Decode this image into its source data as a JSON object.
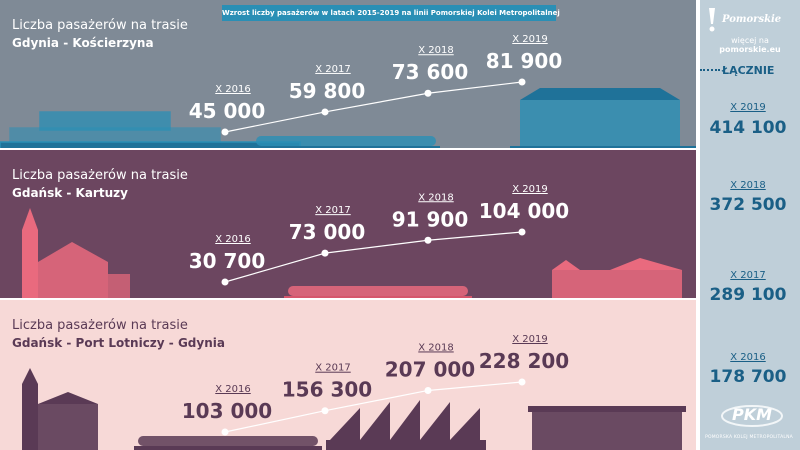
{
  "title": "Wzrost liczby pasażerów w latach 2015-2019 na linii Pomorskiej Kolei Metropolitalnej",
  "brand": {
    "logo_text": "Pomorskie",
    "link_prefix": "więcej na ",
    "link_domain": "pomorskie.eu",
    "pkm_logo": "PKM",
    "pkm_subtitle": "POMORSKA KOLEJ METROPOLITALNA"
  },
  "colors": {
    "band_1": "#7f8a96",
    "band_2": "#6c4660",
    "band_3": "#f7d9d7",
    "sidebar": "#bfcfd9",
    "accent_blue": "#1a5f86",
    "banner": "#2a8fb5",
    "dark_purple": "#5a3a55"
  },
  "icons": [
    "gdynia-building-illustration",
    "train-illustration",
    "station-building-illustration",
    "clock-tower-illustration",
    "airport-terminal-illustration",
    "pomorskie-logo-icon",
    "pkm-logo-icon"
  ],
  "chart_data": [
    {
      "type": "line",
      "label_prefix": "Liczba pasażerów na trasie",
      "route": "Gdynia - Kościerzyna",
      "categories": [
        "X 2016",
        "X 2017",
        "X 2018",
        "X 2019"
      ],
      "values": [
        45000,
        59800,
        73600,
        81900
      ],
      "value_labels": [
        "45 000",
        "59 800",
        "73 600",
        "81 900"
      ]
    },
    {
      "type": "line",
      "label_prefix": "Liczba pasażerów na trasie",
      "route": "Gdańsk - Kartuzy",
      "categories": [
        "X 2016",
        "X 2017",
        "X 2018",
        "X 2019"
      ],
      "values": [
        30700,
        73000,
        91900,
        104000
      ],
      "value_labels": [
        "30 700",
        "73 000",
        "91 900",
        "104 000"
      ]
    },
    {
      "type": "line",
      "label_prefix": "Liczba pasażerów na trasie",
      "route": "Gdańsk - Port Lotniczy - Gdynia",
      "categories": [
        "X 2016",
        "X 2017",
        "X 2018",
        "X 2019"
      ],
      "values": [
        103000,
        156300,
        207000,
        228200
      ],
      "value_labels": [
        "103 000",
        "156 300",
        "207 000",
        "228 200"
      ]
    }
  ],
  "totals": {
    "header": "ŁĄCZNIE",
    "items": [
      {
        "year": "X 2019",
        "value": 414100,
        "label": "414 100"
      },
      {
        "year": "X 2018",
        "value": 372500,
        "label": "372 500"
      },
      {
        "year": "X 2017",
        "value": 289100,
        "label": "289 100"
      },
      {
        "year": "X 2016",
        "value": 178700,
        "label": "178 700"
      }
    ]
  }
}
